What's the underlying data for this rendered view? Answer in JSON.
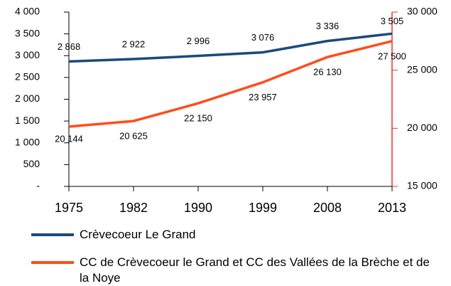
{
  "chart_data": {
    "type": "line",
    "categories": [
      "1975",
      "1982",
      "1990",
      "1999",
      "2008",
      "2013"
    ],
    "series": [
      {
        "name": "Crèvecoeur Le Grand",
        "color": "#1a4a7e",
        "values": [
          2868,
          2922,
          2996,
          3076,
          3336,
          3505
        ],
        "value_labels": [
          "2 868",
          "2 922",
          "2 996",
          "3 076",
          "3 336",
          "3 505"
        ]
      },
      {
        "name": "CC de Crèvecoeur le Grand et CC des Vallées de la Brèche et de la Noye",
        "color": "#ff4d1a",
        "axis": "y2",
        "values": [
          20144,
          20625,
          22150,
          23957,
          26130,
          27500
        ],
        "value_labels": [
          "20 144",
          "20 625",
          "22 150",
          "23 957",
          "26 130",
          "27 500"
        ]
      }
    ],
    "ylim": [
      0,
      4000
    ],
    "yticks": [
      {
        "value": 0,
        "label": "-"
      },
      500,
      {
        "value": 1000,
        "label": "1 000"
      },
      {
        "value": 1500,
        "label": "1 500"
      },
      {
        "value": 2000,
        "label": "2 000"
      },
      {
        "value": 2500,
        "label": "2 500"
      },
      {
        "value": 3000,
        "label": "3 000"
      },
      {
        "value": 3500,
        "label": "3 500"
      },
      {
        "value": 4000,
        "label": "4 000"
      }
    ],
    "y2lim": [
      15000,
      30000
    ],
    "y2ticks": [
      {
        "value": 15000,
        "label": "15 000"
      },
      {
        "value": 20000,
        "label": "20 000"
      },
      {
        "value": 25000,
        "label": "25 000"
      },
      {
        "value": 30000,
        "label": "30 000"
      }
    ],
    "y2color": "#e8322a"
  }
}
